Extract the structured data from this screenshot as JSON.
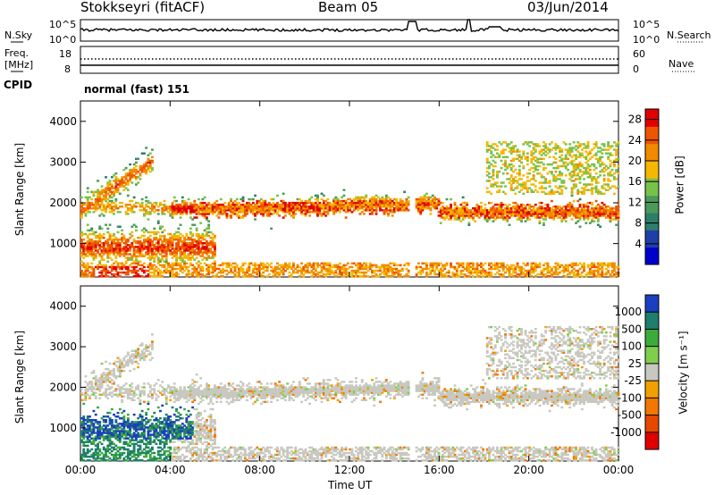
{
  "header": {
    "station": "Stokkseyri (fitACF)",
    "beam": "Beam 05",
    "date": "03/Jun/2014"
  },
  "noise_panel": {
    "left_label": "N.Sky",
    "right_label": "N.Search",
    "left_ticks": [
      "10^5",
      "10^0"
    ],
    "right_ticks": [
      "10^5",
      "10^0"
    ]
  },
  "freq_panel": {
    "left_label_line1": "Freq.",
    "left_label_line2": "[MHz]",
    "right_label": "Nave",
    "left_ticks": [
      "18",
      "8"
    ],
    "right_ticks": [
      "60",
      "0"
    ]
  },
  "cpid": {
    "label": "CPID",
    "value": "normal (fast) 151"
  },
  "colors": {
    "power": [
      "#0000cc",
      "#1f3fa8",
      "#2e7d6a",
      "#4a9b5a",
      "#78c24a",
      "#f5b800",
      "#f08a00",
      "#ee5500",
      "#e00000"
    ],
    "velocity": [
      "#1a3fbf",
      "#1f7e6c",
      "#3cab3c",
      "#7fcf4f",
      "#c8c8c0",
      "#f0a000",
      "#f07800",
      "#e64800",
      "#e00000"
    ]
  },
  "chart_data": [
    {
      "type": "heatmap",
      "name": "power",
      "ylabel": "Slant Range [km]",
      "xlabel": "",
      "xlim": [
        0,
        24
      ],
      "ylim": [
        180,
        4500
      ],
      "yticks": [
        "1000",
        "2000",
        "3000",
        "4000"
      ],
      "xticks": [
        "00:00",
        "04:00",
        "08:00",
        "12:00",
        "16:00",
        "20:00",
        "00:00"
      ],
      "colorbar": {
        "label": "Power [dB]",
        "ticks": [
          "4",
          "8",
          "12",
          "16",
          "20",
          "24",
          "28"
        ],
        "range": [
          0,
          30
        ]
      }
    },
    {
      "type": "heatmap",
      "name": "velocity",
      "ylabel": "Slant Range [km]",
      "xlabel": "Time UT",
      "xlim": [
        0,
        24
      ],
      "ylim": [
        180,
        4500
      ],
      "yticks": [
        "1000",
        "2000",
        "3000",
        "4000"
      ],
      "xticks": [
        "00:00",
        "04:00",
        "08:00",
        "12:00",
        "16:00",
        "20:00",
        "00:00"
      ],
      "colorbar": {
        "label": "Velocity [m s⁻¹]",
        "ticks": [
          "1000",
          "500",
          "100",
          "25",
          "-25",
          "-100",
          "-500",
          "-1000"
        ],
        "range": [
          -1000,
          1000
        ]
      }
    }
  ]
}
